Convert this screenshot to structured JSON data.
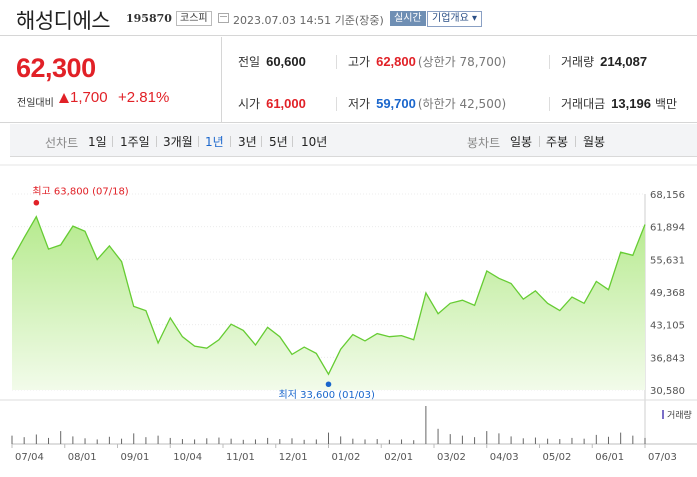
{
  "header": {
    "title": "해성디에스",
    "code": "195870",
    "market": "코스피",
    "datetime": "2023.07.03 14:51",
    "basis": "기준(장중)",
    "realtime": "실시간",
    "overview": "기업개요 ▾"
  },
  "quote": {
    "price": "62,300",
    "change_label": "전일대비",
    "change": "1,700",
    "change_pct": "+2.81%",
    "prev_close_label": "전일",
    "prev_close": "60,600",
    "high_label": "고가",
    "high": "62,800",
    "upper_limit": "(상한가 78,700)",
    "volume_label": "거래량",
    "volume": "214,087",
    "open_label": "시가",
    "open": "61,000",
    "low_label": "저가",
    "low": "59,700",
    "lower_limit": "(하한가 42,500)",
    "amount_label": "거래대금",
    "amount": "13,196",
    "amount_unit": "백만",
    "colors": {
      "up": "#e12127",
      "down": "#1a66cc"
    }
  },
  "periodbar": {
    "label": "선차트",
    "periods": [
      "1일",
      "1주일",
      "3개월",
      "1년",
      "3년",
      "5년",
      "10년"
    ],
    "active": "1년",
    "candle_label": "봉차트",
    "candles": [
      "일봉",
      "주봉",
      "월봉"
    ]
  },
  "chart_data": {
    "type": "area",
    "series": [
      {
        "x": [
          "07/04",
          "07/11",
          "07/18",
          "07/25",
          "08/01",
          "08/08",
          "08/15",
          "08/22",
          "08/29",
          "09/05",
          "09/12",
          "09/19",
          "09/26",
          "10/04",
          "10/11",
          "10/18",
          "10/25",
          "11/01",
          "11/08",
          "11/15",
          "11/22",
          "11/29",
          "12/06",
          "12/13",
          "12/20",
          "12/27",
          "01/03",
          "01/10",
          "01/17",
          "01/24",
          "01/31",
          "02/07",
          "02/14",
          "02/21",
          "02/28",
          "03/07",
          "03/14",
          "03/21",
          "03/28",
          "04/04",
          "04/11",
          "04/18",
          "04/25",
          "05/02",
          "05/09",
          "05/16",
          "05/23",
          "05/30",
          "06/06",
          "06/13",
          "06/20",
          "06/27",
          "07/03"
        ],
        "values": [
          55600,
          59800,
          63800,
          57600,
          58400,
          62000,
          61000,
          55600,
          58200,
          55200,
          46600,
          45800,
          39600,
          44400,
          40800,
          39000,
          38600,
          40200,
          43200,
          42000,
          39200,
          42600,
          40800,
          37400,
          38800,
          37600,
          33600,
          38400,
          41200,
          40000,
          41400,
          40800,
          41000,
          40200,
          49200,
          45200,
          47200,
          47800,
          46800,
          53400,
          52000,
          51000,
          48000,
          49600,
          47200,
          45800,
          48400,
          47200,
          51400,
          49800,
          57000,
          56400,
          62300
        ]
      }
    ],
    "y_ticks": [
      "68,156",
      "61,894",
      "55,631",
      "49,368",
      "43,105",
      "36,843",
      "30,580"
    ],
    "y_min": 30580,
    "y_max": 68156,
    "x_tick_labels": [
      "07/04",
      "08/01",
      "09/01",
      "10/04",
      "11/01",
      "12/01",
      "01/02",
      "02/01",
      "03/02",
      "04/03",
      "05/02",
      "06/01",
      "07/03"
    ],
    "high_annotation": "최고 63,800 (07/18)",
    "low_annotation": "최저 33,600 (01/03)",
    "volume_label": "거래량",
    "volume": [
      22,
      18,
      25,
      16,
      34,
      20,
      15,
      12,
      19,
      14,
      28,
      18,
      22,
      16,
      13,
      12,
      15,
      17,
      14,
      11,
      12,
      16,
      13,
      15,
      11,
      12,
      30,
      20,
      14,
      12,
      13,
      11,
      12,
      10,
      100,
      40,
      26,
      22,
      18,
      34,
      28,
      20,
      15,
      17,
      14,
      13,
      16,
      14,
      24,
      19,
      30,
      22,
      16
    ],
    "line_color": "#66cc33",
    "fill_color": "#c8f0a8",
    "grid": true
  }
}
